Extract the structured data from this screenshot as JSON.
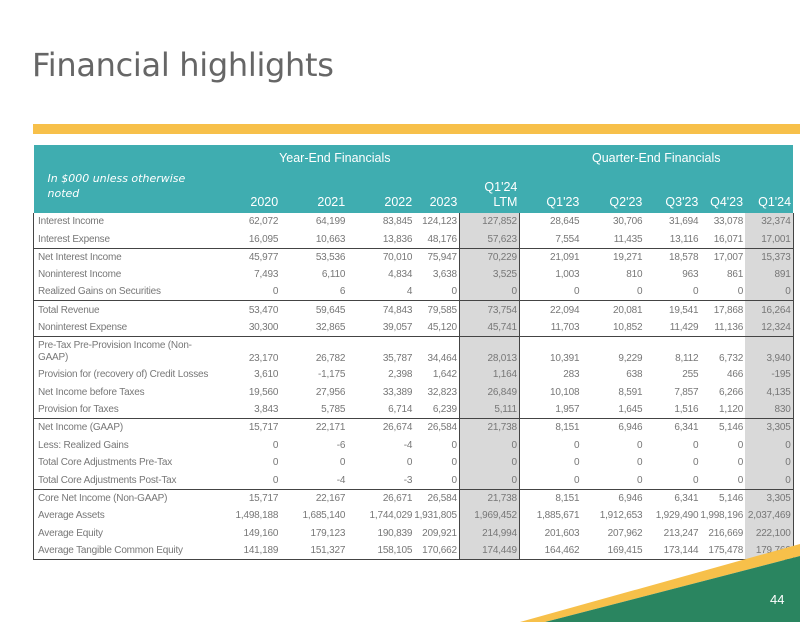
{
  "title": "Financial highlights",
  "page_number": "44",
  "colors": {
    "header": "#3fadb0",
    "accent_yellow": "#f7c04a",
    "accent_green": "#2a8560",
    "shade": "#d9d9d9"
  },
  "table": {
    "note": "In $000 unless otherwise noted",
    "groups": [
      "Year-End Financials",
      "Quarter-End Financials"
    ],
    "columns": [
      "2020",
      "2021",
      "2022",
      "2023",
      "Q1'24 LTM",
      "Q1'23",
      "Q2'23",
      "Q3'23",
      "Q4'23",
      "Q1'24"
    ],
    "rows": [
      {
        "label": "Interest Income",
        "values": [
          "62,072",
          "64,199",
          "83,845",
          "124,123",
          "127,852",
          "28,645",
          "30,706",
          "31,694",
          "33,078",
          "32,374"
        ]
      },
      {
        "label": "Interest Expense",
        "values": [
          "16,095",
          "10,663",
          "13,836",
          "48,176",
          "57,623",
          "7,554",
          "11,435",
          "13,116",
          "16,071",
          "17,001"
        ]
      },
      {
        "label": "Net Interest Income",
        "values": [
          "45,977",
          "53,536",
          "70,010",
          "75,947",
          "70,229",
          "21,091",
          "19,271",
          "18,578",
          "17,007",
          "15,373"
        ]
      },
      {
        "label": "Noninterest Income",
        "values": [
          "7,493",
          "6,110",
          "4,834",
          "3,638",
          "3,525",
          "1,003",
          "810",
          "963",
          "861",
          "891"
        ]
      },
      {
        "label": "Realized Gains on Securities",
        "values": [
          "0",
          "6",
          "4",
          "0",
          "0",
          "0",
          "0",
          "0",
          "0",
          "0"
        ]
      },
      {
        "label": "Total Revenue",
        "values": [
          "53,470",
          "59,645",
          "74,843",
          "79,585",
          "73,754",
          "22,094",
          "20,081",
          "19,541",
          "17,868",
          "16,264"
        ]
      },
      {
        "label": "Noninterest Expense",
        "values": [
          "30,300",
          "32,865",
          "39,057",
          "45,120",
          "45,741",
          "11,703",
          "10,852",
          "11,429",
          "11,136",
          "12,324"
        ]
      },
      {
        "label": "Pre-Tax Pre-Provision Income (Non-GAAP)",
        "values": [
          "23,170",
          "26,782",
          "35,787",
          "34,464",
          "28,013",
          "10,391",
          "9,229",
          "8,112",
          "6,732",
          "3,940"
        ]
      },
      {
        "label": "Provision for (recovery of) Credit Losses",
        "values": [
          "3,610",
          "-1,175",
          "2,398",
          "1,642",
          "1,164",
          "283",
          "638",
          "255",
          "466",
          "-195"
        ]
      },
      {
        "label": "Net Income before Taxes",
        "values": [
          "19,560",
          "27,956",
          "33,389",
          "32,823",
          "26,849",
          "10,108",
          "8,591",
          "7,857",
          "6,266",
          "4,135"
        ]
      },
      {
        "label": "Provision for Taxes",
        "values": [
          "3,843",
          "5,785",
          "6,714",
          "6,239",
          "5,111",
          "1,957",
          "1,645",
          "1,516",
          "1,120",
          "830"
        ]
      },
      {
        "label": "Net Income (GAAP)",
        "values": [
          "15,717",
          "22,171",
          "26,674",
          "26,584",
          "21,738",
          "8,151",
          "6,946",
          "6,341",
          "5,146",
          "3,305"
        ]
      },
      {
        "label": "Less: Realized Gains",
        "values": [
          "0",
          "-6",
          "-4",
          "0",
          "0",
          "0",
          "0",
          "0",
          "0",
          "0"
        ]
      },
      {
        "label": "Total Core Adjustments Pre-Tax",
        "values": [
          "0",
          "0",
          "0",
          "0",
          "0",
          "0",
          "0",
          "0",
          "0",
          "0"
        ]
      },
      {
        "label": "Total Core Adjustments Post-Tax",
        "values": [
          "0",
          "-4",
          "-3",
          "0",
          "0",
          "0",
          "0",
          "0",
          "0",
          "0"
        ]
      },
      {
        "label": "Core Net Income (Non-GAAP)",
        "values": [
          "15,717",
          "22,167",
          "26,671",
          "26,584",
          "21,738",
          "8,151",
          "6,946",
          "6,341",
          "5,146",
          "3,305"
        ]
      },
      {
        "label": "Average Assets",
        "values": [
          "1,498,188",
          "1,685,140",
          "1,744,029",
          "1,931,805",
          "1,969,452",
          "1,885,671",
          "1,912,653",
          "1,929,490",
          "1,998,196",
          "2,037,469"
        ]
      },
      {
        "label": "Average Equity",
        "values": [
          "149,160",
          "179,123",
          "190,839",
          "209,921",
          "214,994",
          "201,603",
          "207,962",
          "213,247",
          "216,669",
          "222,100"
        ]
      },
      {
        "label": "Average Tangible Common Equity",
        "values": [
          "141,189",
          "151,327",
          "158,105",
          "170,662",
          "174,449",
          "164,462",
          "169,415",
          "173,144",
          "175,478",
          "179,760"
        ]
      }
    ]
  }
}
